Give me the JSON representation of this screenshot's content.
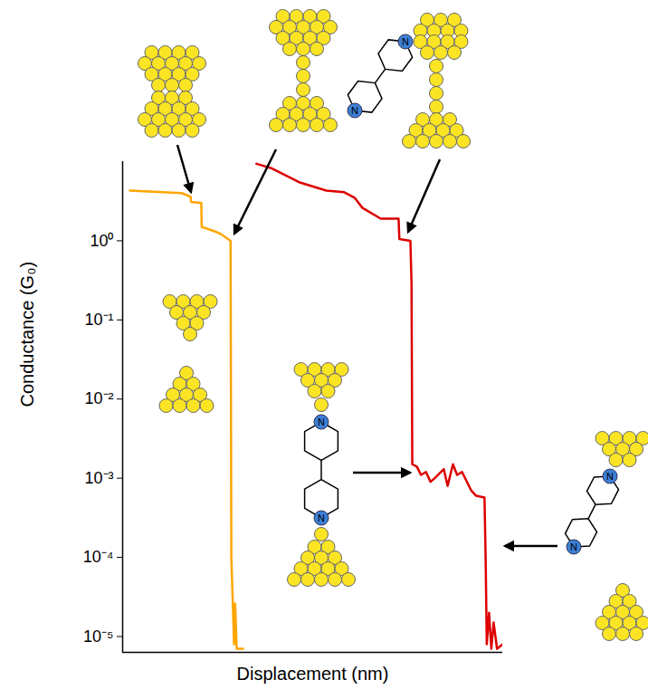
{
  "chart_data": {
    "type": "line",
    "xlabel": "Displacement (nm)",
    "ylabel": "Conductance (G₀)",
    "log": "y",
    "tick_labels": "y",
    "xlim": [
      0,
      100
    ],
    "ylim": [
      6.3e-06,
      10
    ],
    "yticks": [
      {
        "value": 1,
        "label": "10⁰"
      },
      {
        "value": 0.1,
        "label": "10⁻¹"
      },
      {
        "value": 0.01,
        "label": "10⁻²"
      },
      {
        "value": 0.001,
        "label": "10⁻³"
      },
      {
        "value": 0.0001,
        "label": "10⁻⁴"
      },
      {
        "value": 1e-05,
        "label": "10⁻⁵"
      }
    ],
    "series": [
      {
        "color": "#ffa500",
        "x": [
          1.9,
          15.5,
          17.9,
          18.0,
          20.7,
          20.8,
          24.5,
          26.0,
          28.4,
          28.6,
          29.0,
          29.3,
          29.6,
          30.0,
          31.7
        ],
        "values": [
          4.3,
          4.0,
          3.6,
          3.1,
          3.0,
          1.5,
          1.3,
          1.2,
          1.0,
          0.0001,
          2.5e-05,
          8e-06,
          2.6e-05,
          7e-06,
          7e-06
        ]
      },
      {
        "color": "#dd0000",
        "x": [
          35.2,
          39.3,
          46.4,
          53.6,
          58.3,
          61.0,
          63.1,
          67.9,
          72.6,
          72.8,
          75.7,
          76.0,
          76.2,
          77.4,
          78.5,
          79.8,
          81.0,
          82.1,
          84.5,
          85.5,
          86.9,
          88.0,
          89.3,
          91.7,
          93.0,
          95.2,
          95.5,
          95.8,
          96.4,
          97.0,
          97.6,
          98.5,
          100
        ],
        "values": [
          9.4,
          8.2,
          5.5,
          4.3,
          4.1,
          3.5,
          2.6,
          1.9,
          1.9,
          1.05,
          1.0,
          0.3,
          0.0015,
          0.0014,
          0.0011,
          0.0012,
          0.0009,
          0.001,
          0.0013,
          0.0008,
          0.0015,
          0.0011,
          0.0012,
          0.0007,
          0.0006,
          0.00057,
          0.0001,
          8e-06,
          2e-05,
          7e-06,
          1.5e-05,
          7e-06,
          8e-06
        ]
      }
    ],
    "annotations": [
      {
        "text": "N"
      }
    ]
  }
}
